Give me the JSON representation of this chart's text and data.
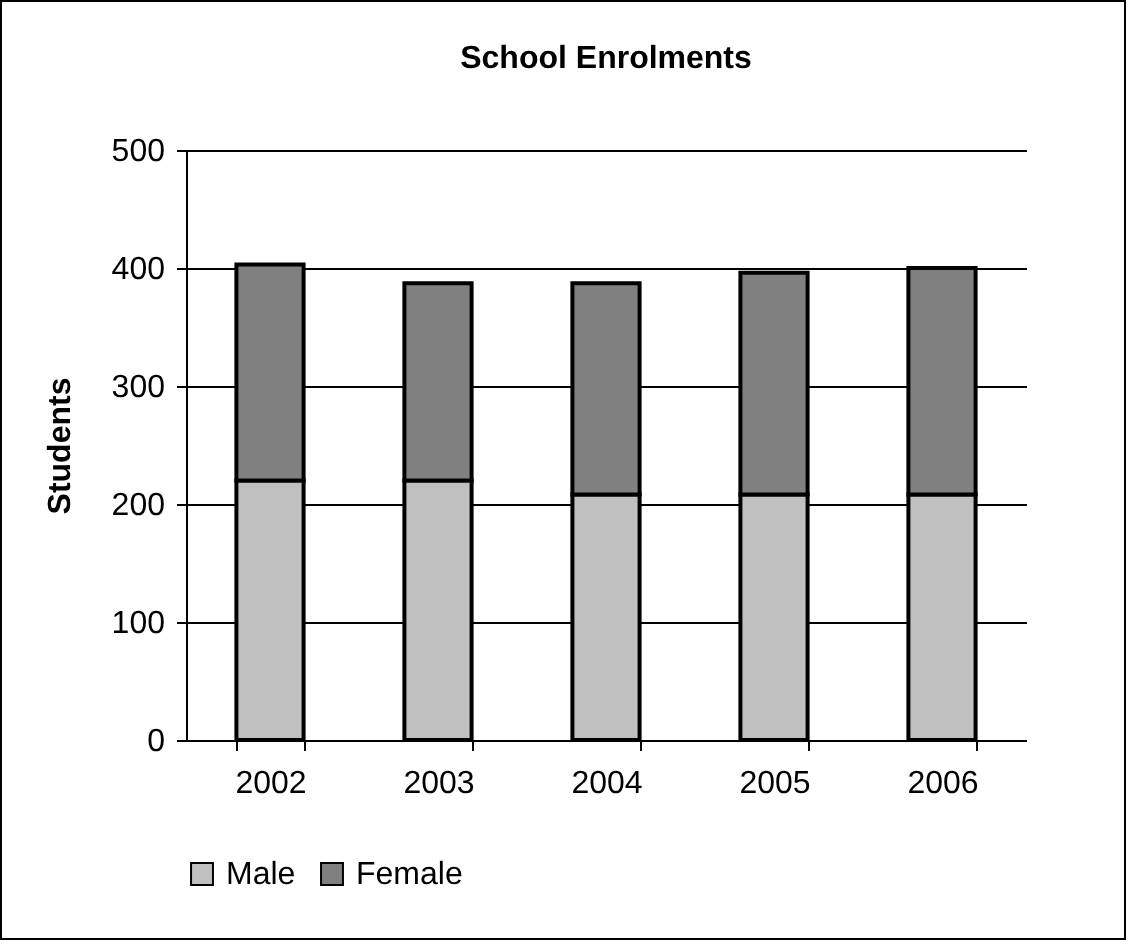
{
  "chart_data": {
    "type": "bar",
    "title": "School Enrolments",
    "ylabel": "Students",
    "categories": [
      "2002",
      "2003",
      "2004",
      "2005",
      "2006"
    ],
    "series": [
      {
        "name": "Male",
        "color": "#c0c0c0",
        "values": [
          220,
          220,
          208,
          208,
          208
        ]
      },
      {
        "name": "Female",
        "color": "#808080",
        "values": [
          183,
          167,
          179,
          188,
          192
        ]
      }
    ],
    "stacked": true,
    "ylim": [
      0,
      500
    ],
    "yticks": [
      0,
      100,
      200,
      300,
      400,
      500
    ],
    "grid": "y",
    "legend": "bottom"
  }
}
